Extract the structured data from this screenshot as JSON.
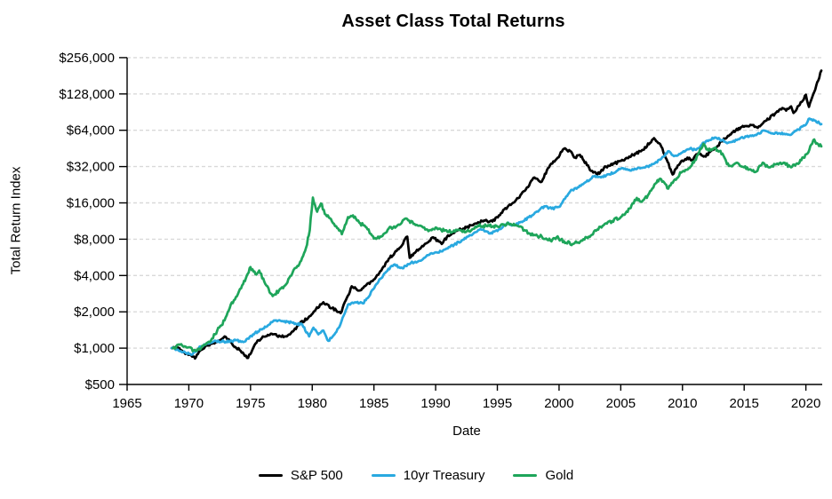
{
  "chart_data": {
    "type": "line",
    "title": "Asset Class Total Returns",
    "xlabel": "Date",
    "ylabel": "Total Return Index",
    "x_ticks": [
      1965,
      1970,
      1975,
      1980,
      1985,
      1990,
      1995,
      2000,
      2005,
      2010,
      2015,
      2020
    ],
    "x_range": [
      1965,
      2021.4
    ],
    "y_scale": "log2",
    "y_ticks": [
      500,
      1000,
      2000,
      4000,
      8000,
      16000,
      32000,
      64000,
      128000,
      256000
    ],
    "y_tick_labels": [
      "$500",
      "$1,000",
      "$2,000",
      "$4,000",
      "$8,000",
      "$16,000",
      "$32,000",
      "$64,000",
      "$128,000",
      "$256,000"
    ],
    "grid": "horizontal-dashed",
    "grid_color": "#d9d9d9",
    "axis_color": "#000000",
    "legend_position": "bottom",
    "series": [
      {
        "name": "S&P 500",
        "color": "#000000",
        "points": [
          [
            1968.6,
            1000
          ],
          [
            1969.0,
            1040
          ],
          [
            1969.4,
            960
          ],
          [
            1969.8,
            900
          ],
          [
            1970.2,
            870
          ],
          [
            1970.5,
            820
          ],
          [
            1970.9,
            950
          ],
          [
            1971.5,
            1050
          ],
          [
            1972.0,
            1100
          ],
          [
            1972.9,
            1250
          ],
          [
            1973.5,
            1090
          ],
          [
            1974.2,
            950
          ],
          [
            1974.8,
            830
          ],
          [
            1975.4,
            1090
          ],
          [
            1976.0,
            1250
          ],
          [
            1976.8,
            1300
          ],
          [
            1977.5,
            1240
          ],
          [
            1978.2,
            1300
          ],
          [
            1979.0,
            1600
          ],
          [
            1979.7,
            1800
          ],
          [
            1980.3,
            2100
          ],
          [
            1980.9,
            2400
          ],
          [
            1981.6,
            2150
          ],
          [
            1982.3,
            1950
          ],
          [
            1982.8,
            2600
          ],
          [
            1983.2,
            3260
          ],
          [
            1983.8,
            3000
          ],
          [
            1984.9,
            3600
          ],
          [
            1985.6,
            4400
          ],
          [
            1986.2,
            5500
          ],
          [
            1987.0,
            6600
          ],
          [
            1987.7,
            8400
          ],
          [
            1987.9,
            5600
          ],
          [
            1988.4,
            6300
          ],
          [
            1989.0,
            7000
          ],
          [
            1989.8,
            8300
          ],
          [
            1990.5,
            7300
          ],
          [
            1991.0,
            8600
          ],
          [
            1991.8,
            9500
          ],
          [
            1992.5,
            10000
          ],
          [
            1993.2,
            10800
          ],
          [
            1994.0,
            11400
          ],
          [
            1994.6,
            11200
          ],
          [
            1995.3,
            13200
          ],
          [
            1996.0,
            15500
          ],
          [
            1996.7,
            17500
          ],
          [
            1997.4,
            21500
          ],
          [
            1998.0,
            26000
          ],
          [
            1998.6,
            24000
          ],
          [
            1999.1,
            31000
          ],
          [
            1999.8,
            37000
          ],
          [
            2000.4,
            45000
          ],
          [
            2000.9,
            43000
          ],
          [
            2001.3,
            38000
          ],
          [
            2001.7,
            40000
          ],
          [
            2002.0,
            36000
          ],
          [
            2002.6,
            29500
          ],
          [
            2003.1,
            27500
          ],
          [
            2003.8,
            32000
          ],
          [
            2004.5,
            34000
          ],
          [
            2005.2,
            36000
          ],
          [
            2006.0,
            40000
          ],
          [
            2006.8,
            44000
          ],
          [
            2007.7,
            55000
          ],
          [
            2008.2,
            49000
          ],
          [
            2008.8,
            35000
          ],
          [
            2009.2,
            27500
          ],
          [
            2009.8,
            34000
          ],
          [
            2010.4,
            38000
          ],
          [
            2010.7,
            36000
          ],
          [
            2011.3,
            41500
          ],
          [
            2011.8,
            39000
          ],
          [
            2012.5,
            44000
          ],
          [
            2013.2,
            52000
          ],
          [
            2014.0,
            61000
          ],
          [
            2014.8,
            68000
          ],
          [
            2015.5,
            71000
          ],
          [
            2016.1,
            67000
          ],
          [
            2016.8,
            77000
          ],
          [
            2017.5,
            88000
          ],
          [
            2018.1,
            98000
          ],
          [
            2018.4,
            93000
          ],
          [
            2018.8,
            101000
          ],
          [
            2019.0,
            89000
          ],
          [
            2019.5,
            104000
          ],
          [
            2020.0,
            126000
          ],
          [
            2020.25,
            100000
          ],
          [
            2020.6,
            128000
          ],
          [
            2021.0,
            165000
          ],
          [
            2021.25,
            200000
          ]
        ]
      },
      {
        "name": "10yr Treasury",
        "color": "#29A9E0",
        "points": [
          [
            1968.6,
            1000
          ],
          [
            1969.2,
            950
          ],
          [
            1969.7,
            920
          ],
          [
            1970.2,
            880
          ],
          [
            1970.8,
            1000
          ],
          [
            1971.5,
            1100
          ],
          [
            1972.2,
            1150
          ],
          [
            1973.0,
            1130
          ],
          [
            1973.8,
            1160
          ],
          [
            1974.5,
            1130
          ],
          [
            1975.2,
            1300
          ],
          [
            1976.0,
            1450
          ],
          [
            1976.9,
            1700
          ],
          [
            1977.6,
            1680
          ],
          [
            1978.4,
            1620
          ],
          [
            1979.2,
            1560
          ],
          [
            1979.75,
            1250
          ],
          [
            1980.1,
            1480
          ],
          [
            1980.5,
            1300
          ],
          [
            1980.9,
            1400
          ],
          [
            1981.3,
            1150
          ],
          [
            1981.8,
            1300
          ],
          [
            1982.2,
            1500
          ],
          [
            1982.9,
            2300
          ],
          [
            1983.5,
            2400
          ],
          [
            1984.1,
            2350
          ],
          [
            1984.5,
            2600
          ],
          [
            1985.2,
            3400
          ],
          [
            1986.0,
            4300
          ],
          [
            1986.6,
            4900
          ],
          [
            1987.3,
            4600
          ],
          [
            1988.0,
            5100
          ],
          [
            1988.7,
            5300
          ],
          [
            1989.4,
            5900
          ],
          [
            1990.1,
            6200
          ],
          [
            1990.8,
            6600
          ],
          [
            1991.5,
            7200
          ],
          [
            1992.2,
            7900
          ],
          [
            1993.0,
            8800
          ],
          [
            1993.7,
            9600
          ],
          [
            1994.4,
            8900
          ],
          [
            1995.1,
            9600
          ],
          [
            1995.8,
            10800
          ],
          [
            1996.4,
            10400
          ],
          [
            1997.1,
            11300
          ],
          [
            1997.8,
            12600
          ],
          [
            1998.8,
            15000
          ],
          [
            1999.4,
            14300
          ],
          [
            2000.0,
            14800
          ],
          [
            2000.9,
            19900
          ],
          [
            2001.5,
            21500
          ],
          [
            2002.2,
            23900
          ],
          [
            2002.9,
            26800
          ],
          [
            2003.4,
            26000
          ],
          [
            2004.1,
            27500
          ],
          [
            2005.0,
            30800
          ],
          [
            2005.6,
            30000
          ],
          [
            2006.3,
            30500
          ],
          [
            2007.0,
            31500
          ],
          [
            2007.6,
            33500
          ],
          [
            2008.2,
            36500
          ],
          [
            2008.9,
            43000
          ],
          [
            2009.3,
            39000
          ],
          [
            2010.0,
            42000
          ],
          [
            2010.6,
            45000
          ],
          [
            2011.1,
            44000
          ],
          [
            2011.9,
            52000
          ],
          [
            2012.6,
            55600
          ],
          [
            2013.2,
            53000
          ],
          [
            2013.7,
            50500
          ],
          [
            2014.4,
            53000
          ],
          [
            2015.1,
            57000
          ],
          [
            2015.9,
            58500
          ],
          [
            2016.6,
            63700
          ],
          [
            2017.1,
            61000
          ],
          [
            2017.8,
            60500
          ],
          [
            2018.5,
            59000
          ],
          [
            2018.9,
            60000
          ],
          [
            2019.4,
            65000
          ],
          [
            2019.9,
            70000
          ],
          [
            2020.3,
            80000
          ],
          [
            2020.7,
            77000
          ],
          [
            2021.25,
            72000
          ]
        ]
      },
      {
        "name": "Gold",
        "color": "#1EA55A",
        "points": [
          [
            1968.7,
            1000
          ],
          [
            1969.3,
            1070
          ],
          [
            1969.9,
            1010
          ],
          [
            1970.4,
            960
          ],
          [
            1971.0,
            1000
          ],
          [
            1971.7,
            1120
          ],
          [
            1972.3,
            1400
          ],
          [
            1972.9,
            1700
          ],
          [
            1973.4,
            2300
          ],
          [
            1973.9,
            2700
          ],
          [
            1974.4,
            3400
          ],
          [
            1974.7,
            4000
          ],
          [
            1975.0,
            4700
          ],
          [
            1975.4,
            4100
          ],
          [
            1975.7,
            4400
          ],
          [
            1976.2,
            3400
          ],
          [
            1976.8,
            2700
          ],
          [
            1977.3,
            3000
          ],
          [
            1977.9,
            3400
          ],
          [
            1978.4,
            4200
          ],
          [
            1978.8,
            4800
          ],
          [
            1979.1,
            5300
          ],
          [
            1979.5,
            6800
          ],
          [
            1979.8,
            9500
          ],
          [
            1980.05,
            17700
          ],
          [
            1980.4,
            13500
          ],
          [
            1980.7,
            15800
          ],
          [
            1981.1,
            12800
          ],
          [
            1981.6,
            11200
          ],
          [
            1982.1,
            9800
          ],
          [
            1982.4,
            8800
          ],
          [
            1982.9,
            12200
          ],
          [
            1983.3,
            12600
          ],
          [
            1983.8,
            11000
          ],
          [
            1984.4,
            10000
          ],
          [
            1985.0,
            8100
          ],
          [
            1985.6,
            8400
          ],
          [
            1986.2,
            9800
          ],
          [
            1986.9,
            10400
          ],
          [
            1987.6,
            11900
          ],
          [
            1988.2,
            10700
          ],
          [
            1988.9,
            10200
          ],
          [
            1989.5,
            9500
          ],
          [
            1990.0,
            10000
          ],
          [
            1990.7,
            9400
          ],
          [
            1991.4,
            9200
          ],
          [
            1992.0,
            9500
          ],
          [
            1992.7,
            9300
          ],
          [
            1993.4,
            10300
          ],
          [
            1994.1,
            10300
          ],
          [
            1995.0,
            10200
          ],
          [
            1995.9,
            10800
          ],
          [
            1996.5,
            10500
          ],
          [
            1997.2,
            9500
          ],
          [
            1997.9,
            8600
          ],
          [
            1998.6,
            8400
          ],
          [
            1999.3,
            7800
          ],
          [
            1999.8,
            8300
          ],
          [
            2000.4,
            7700
          ],
          [
            2001.1,
            7300
          ],
          [
            2001.8,
            7800
          ],
          [
            2002.4,
            8400
          ],
          [
            2003.0,
            9400
          ],
          [
            2003.7,
            10700
          ],
          [
            2004.3,
            11300
          ],
          [
            2005.0,
            12200
          ],
          [
            2005.8,
            14500
          ],
          [
            2006.3,
            17600
          ],
          [
            2006.7,
            16300
          ],
          [
            2007.2,
            18500
          ],
          [
            2007.9,
            23500
          ],
          [
            2008.2,
            25400
          ],
          [
            2008.6,
            23000
          ],
          [
            2008.85,
            21000
          ],
          [
            2009.3,
            24500
          ],
          [
            2009.9,
            28500
          ],
          [
            2010.5,
            31000
          ],
          [
            2011.0,
            36000
          ],
          [
            2011.7,
            49500
          ],
          [
            2012.1,
            43500
          ],
          [
            2012.6,
            45500
          ],
          [
            2013.0,
            43000
          ],
          [
            2013.4,
            38000
          ],
          [
            2013.6,
            33500
          ],
          [
            2014.1,
            33000
          ],
          [
            2014.4,
            34500
          ],
          [
            2015.0,
            31500
          ],
          [
            2015.9,
            28800
          ],
          [
            2016.5,
            34500
          ],
          [
            2017.0,
            31500
          ],
          [
            2017.6,
            33500
          ],
          [
            2018.2,
            34500
          ],
          [
            2018.8,
            31500
          ],
          [
            2019.3,
            34000
          ],
          [
            2019.8,
            38000
          ],
          [
            2020.2,
            42000
          ],
          [
            2020.6,
            53000
          ],
          [
            2020.9,
            50000
          ],
          [
            2021.25,
            47000
          ]
        ]
      }
    ]
  }
}
